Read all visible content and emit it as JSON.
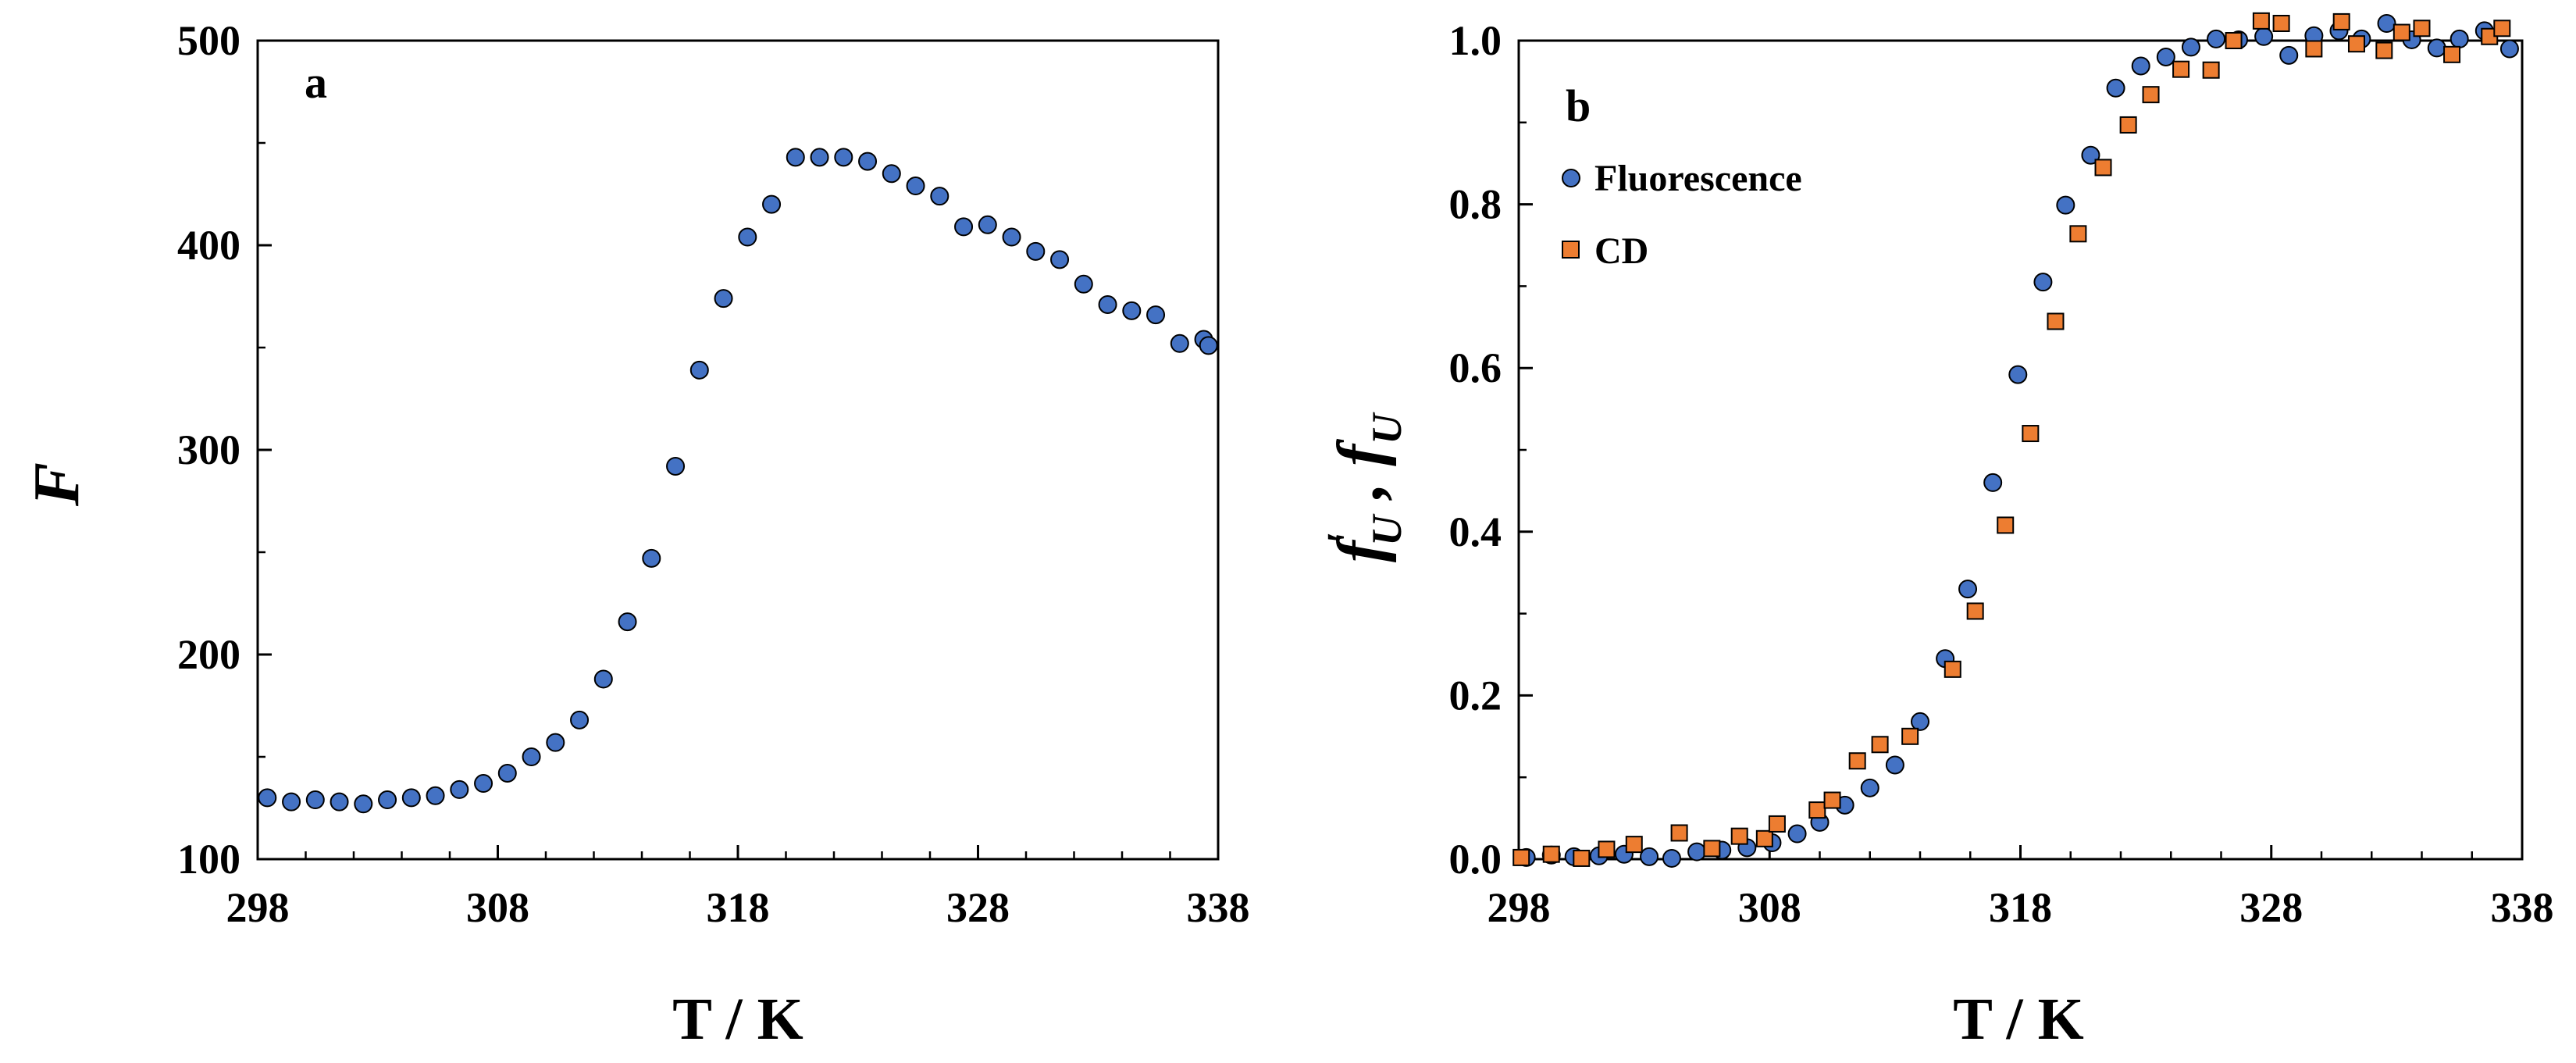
{
  "colors": {
    "fluorescence": "#4472c4",
    "cd": "#ed7d31",
    "stroke": "#000000"
  },
  "chart_data": [
    {
      "type": "scatter",
      "panel": "a",
      "xlabel": "T / K",
      "ylabel": "F",
      "xlim": [
        298,
        338
      ],
      "ylim": [
        100,
        500
      ],
      "xticks": [
        "298",
        "308",
        "318",
        "328",
        "338"
      ],
      "yticks": [
        "100",
        "200",
        "300",
        "400",
        "500"
      ],
      "series": [
        {
          "name": "F",
          "x": [
            298.4,
            299.4,
            300.4,
            301.4,
            302.4,
            303.4,
            304.4,
            305.4,
            306.4,
            307.4,
            308.4,
            309.4,
            310.4,
            311.4,
            312.4,
            313.4,
            314.4,
            315.4,
            316.4,
            317.4,
            318.4,
            319.4,
            320.4,
            321.4,
            322.4,
            323.4,
            324.4,
            325.4,
            326.4,
            327.4,
            328.4,
            329.4,
            330.4,
            331.4,
            332.4,
            333.4,
            334.4,
            335.4,
            336.4,
            337.4,
            337.6
          ],
          "y": [
            130,
            128,
            129,
            128,
            127,
            129,
            130,
            131,
            134,
            137,
            142,
            150,
            157,
            168,
            188,
            216,
            247,
            292,
            339,
            374,
            404,
            420,
            443,
            443,
            443,
            441,
            435,
            429,
            424,
            409,
            410,
            404,
            397,
            393,
            381,
            371,
            368,
            366,
            352,
            354,
            351
          ]
        }
      ]
    },
    {
      "type": "scatter",
      "panel": "b",
      "xlabel": "T / K",
      "ylabel": "f'U , fU",
      "xlim": [
        298,
        338
      ],
      "ylim": [
        0.0,
        1.0
      ],
      "xticks": [
        "298",
        "308",
        "318",
        "328",
        "338"
      ],
      "yticks": [
        "0.0",
        "0.2",
        "0.4",
        "0.6",
        "0.8",
        "1.0"
      ],
      "legend": {
        "position": "top-left",
        "entries": [
          "Fluorescence",
          "CD"
        ]
      },
      "series": [
        {
          "name": "Fluorescence",
          "marker": "circle",
          "x": [
            298.3,
            299.3,
            300.2,
            301.2,
            302.2,
            303.2,
            304.1,
            305.1,
            306.1,
            307.1,
            308.1,
            309.1,
            310.0,
            311.0,
            312.0,
            313.0,
            314.0,
            315.0,
            315.9,
            316.9,
            317.9,
            318.9,
            319.8,
            320.8,
            321.8,
            322.8,
            323.8,
            324.8,
            325.8,
            326.7,
            327.7,
            328.7,
            329.7,
            330.7,
            331.6,
            332.6,
            333.6,
            334.6,
            335.5,
            336.5,
            337.5
          ],
          "y": [
            0.002,
            0.005,
            0.003,
            0.004,
            0.006,
            0.003,
            0.001,
            0.009,
            0.011,
            0.014,
            0.02,
            0.031,
            0.045,
            0.066,
            0.087,
            0.115,
            0.168,
            0.245,
            0.33,
            0.46,
            0.592,
            0.705,
            0.799,
            0.86,
            0.942,
            0.969,
            0.98,
            0.992,
            1.002,
            1.001,
            1.005,
            0.982,
            1.006,
            1.012,
            1.002,
            1.021,
            1.001,
            0.991,
            1.002,
            1.012,
            0.99
          ]
        },
        {
          "name": "CD",
          "marker": "square",
          "x": [
            298.1,
            299.3,
            300.5,
            301.5,
            302.6,
            304.4,
            305.7,
            306.8,
            307.8,
            308.3,
            309.9,
            310.5,
            311.5,
            312.4,
            313.6,
            315.3,
            316.2,
            317.4,
            318.4,
            319.4,
            320.3,
            321.3,
            322.3,
            323.2,
            324.4,
            325.6,
            326.5,
            327.6,
            328.4,
            329.7,
            330.8,
            331.4,
            332.5,
            333.2,
            334.0,
            335.2,
            336.7,
            337.2
          ],
          "y": [
            0.002,
            0.006,
            0.001,
            0.012,
            0.018,
            0.032,
            0.013,
            0.028,
            0.025,
            0.043,
            0.06,
            0.072,
            0.12,
            0.14,
            0.15,
            0.232,
            0.303,
            0.408,
            0.52,
            0.657,
            0.764,
            0.845,
            0.897,
            0.934,
            0.965,
            0.964,
            1.0,
            1.024,
            1.021,
            0.99,
            1.023,
            0.996,
            0.988,
            1.01,
            1.015,
            0.983,
            1.005,
            1.015
          ]
        }
      ]
    }
  ]
}
